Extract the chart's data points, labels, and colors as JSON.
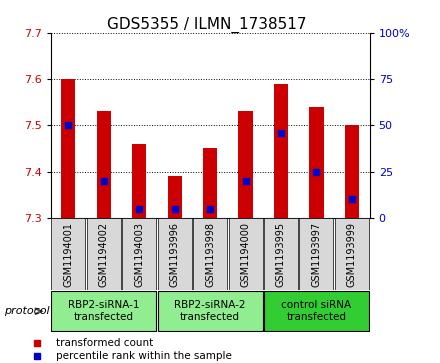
{
  "title": "GDS5355 / ILMN_1738517",
  "samples": [
    "GSM1194001",
    "GSM1194002",
    "GSM1194003",
    "GSM1193996",
    "GSM1193998",
    "GSM1194000",
    "GSM1193995",
    "GSM1193997",
    "GSM1193999"
  ],
  "transformed_counts": [
    7.6,
    7.53,
    7.46,
    7.39,
    7.45,
    7.53,
    7.59,
    7.54,
    7.5
  ],
  "percentile_ranks": [
    50,
    20,
    5,
    5,
    5,
    20,
    46,
    25,
    10
  ],
  "ylim": [
    7.3,
    7.7
  ],
  "yticks": [
    7.3,
    7.4,
    7.5,
    7.6,
    7.7
  ],
  "right_yticks": [
    0,
    25,
    50,
    75,
    100
  ],
  "bar_color": "#cc0000",
  "dot_color": "#0000cc",
  "bg_color": "#d8d8d8",
  "protocol_groups": [
    {
      "label": "RBP2-siRNA-1\ntransfected",
      "start": 0,
      "end": 3,
      "color": "#90ee90"
    },
    {
      "label": "RBP2-siRNA-2\ntransfected",
      "start": 3,
      "end": 6,
      "color": "#90ee90"
    },
    {
      "label": "control siRNA\ntransfected",
      "start": 6,
      "end": 9,
      "color": "#32cd32"
    }
  ],
  "bar_width": 0.4,
  "ybase": 7.3,
  "title_fontsize": 11,
  "tick_fontsize": 8,
  "sample_fontsize": 7,
  "group_fontsize": 7.5
}
